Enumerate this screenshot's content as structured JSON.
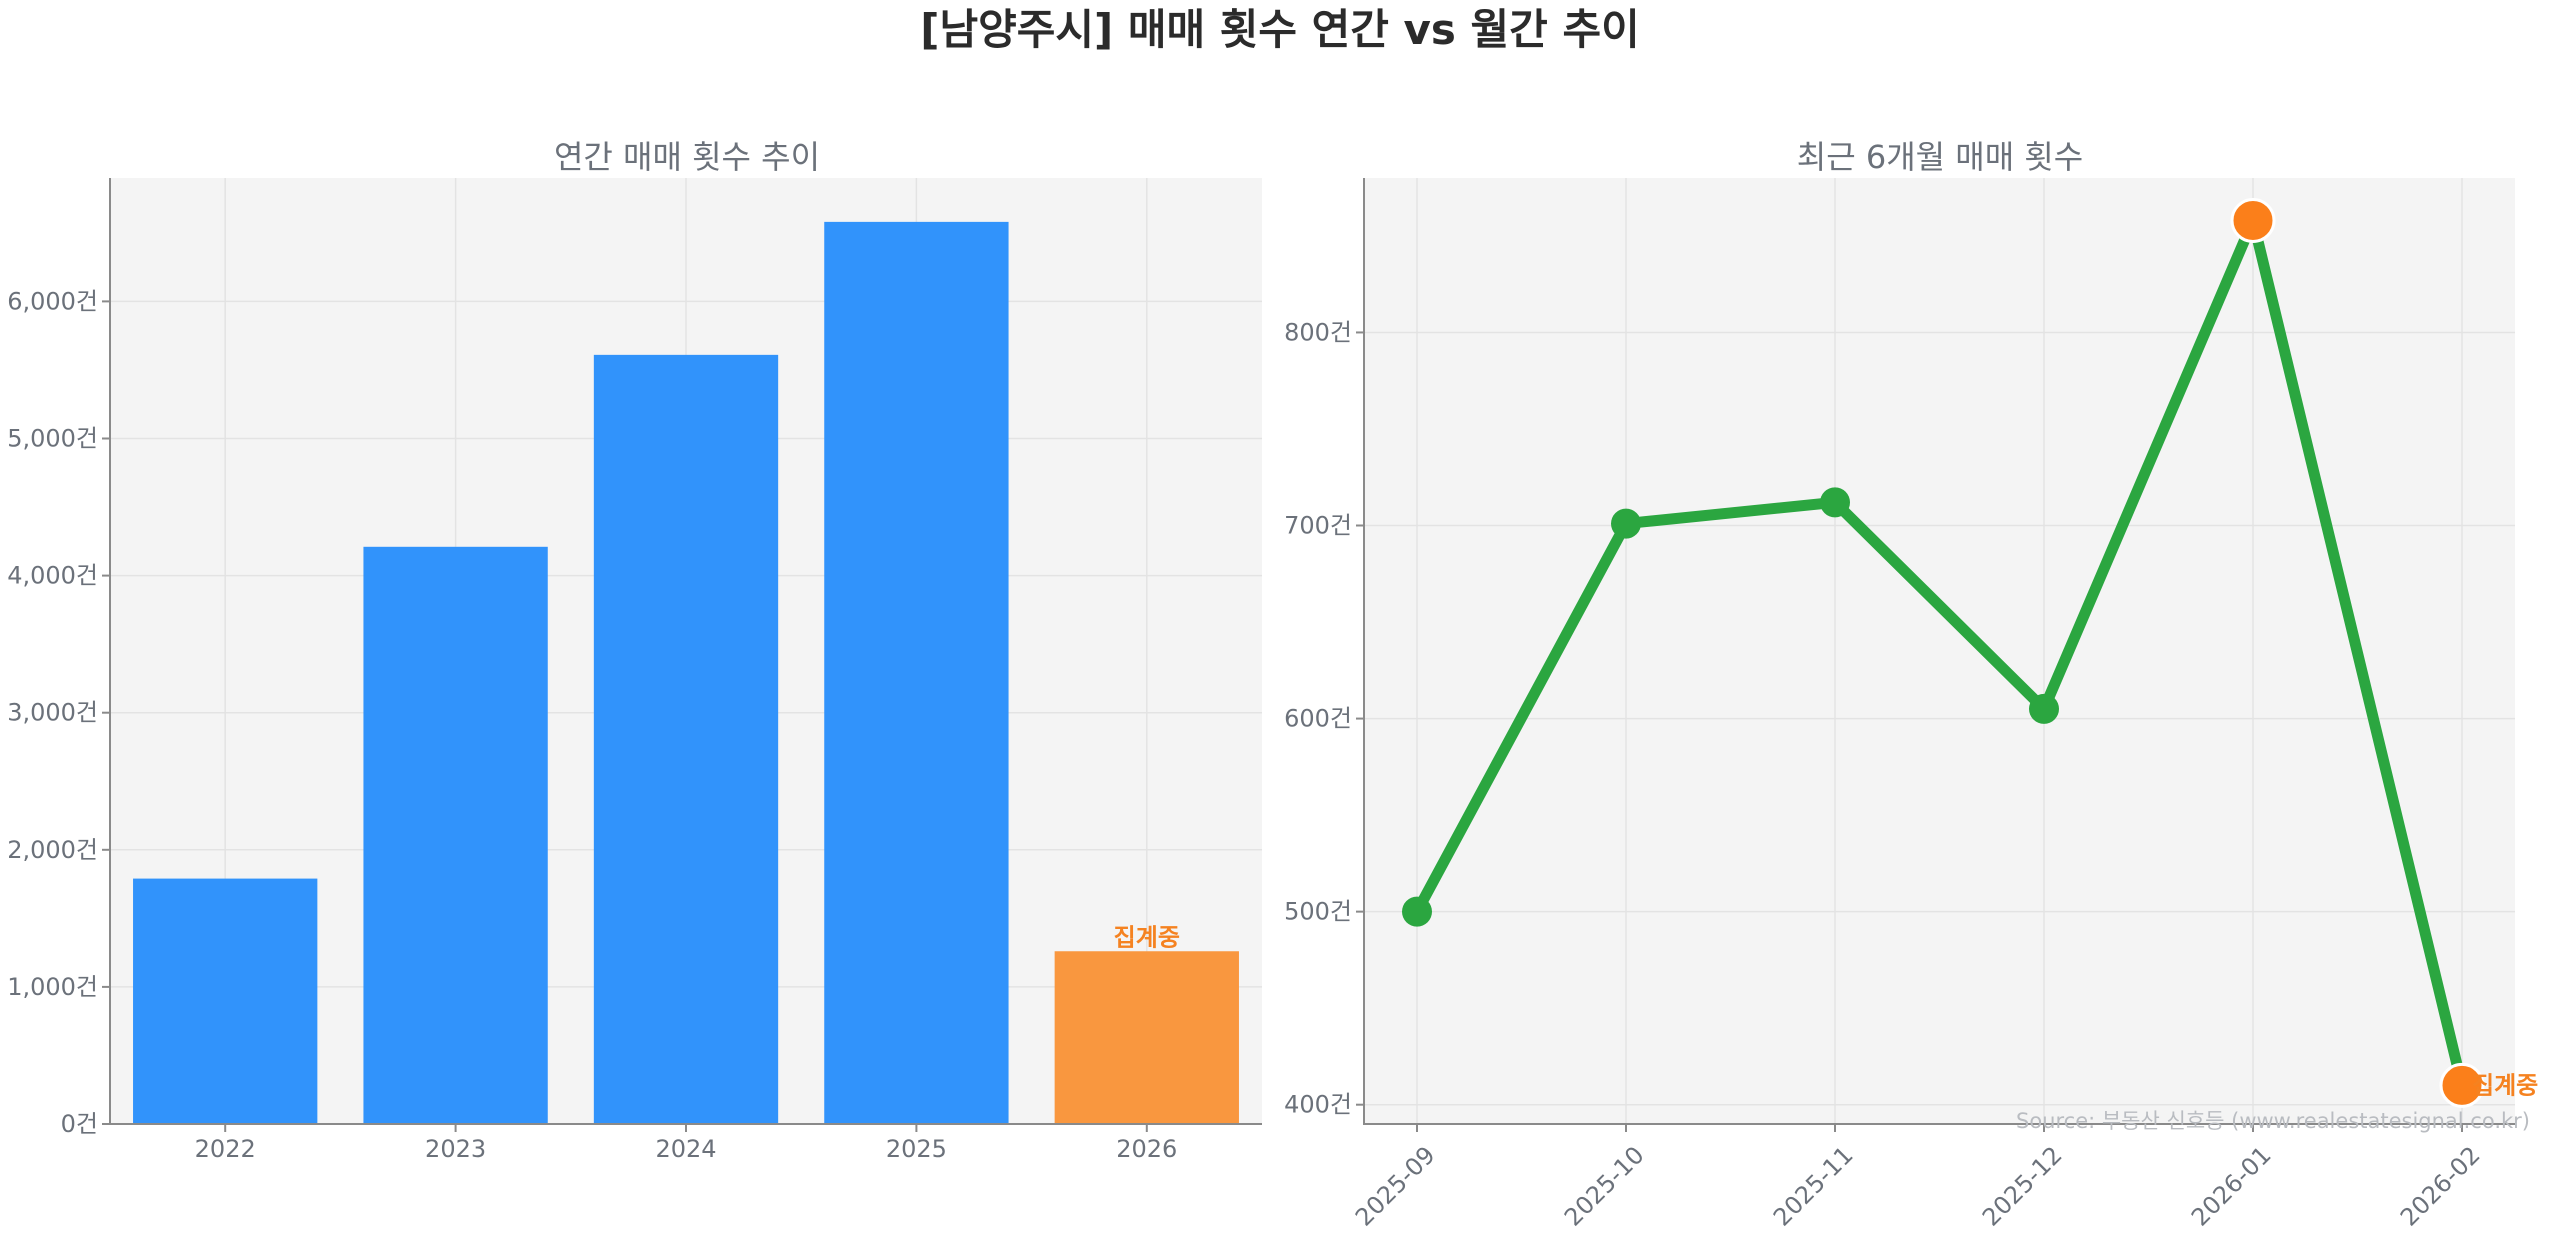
{
  "figure_title": "[남양주시] 매매 횟수 연간 vs 월간 추이",
  "source_note": "Source: 부동산 신호등 (www.realestatesignal.co.kr)",
  "colors": {
    "annual_bar": "#3193fb",
    "annual_bar_current": "#f9973f",
    "monthly_line": "#2ba640",
    "monthly_point_highlight": "#fb7f1a",
    "status_label": "#f58220",
    "plot_background": "#f4f4f4",
    "grid": "#e3e3e3",
    "axis_text": "#6b717a"
  },
  "chart_data": [
    {
      "type": "bar",
      "title": "연간 매매 횟수 추이",
      "xlabel": "",
      "ylabel": "",
      "categories": [
        "2022",
        "2023",
        "2024",
        "2025",
        "2026"
      ],
      "values": [
        1790,
        4210,
        5610,
        6580,
        1260
      ],
      "ylim": [
        0,
        6900
      ],
      "yticks": [
        0,
        1000,
        2000,
        3000,
        4000,
        5000,
        6000
      ],
      "ytick_labels": [
        "0건",
        "1,000건",
        "2,000건",
        "3,000건",
        "4,000건",
        "5,000건",
        "6,000건"
      ],
      "highlight_index": 4,
      "annotation": "집계중",
      "grid": true,
      "legend": "none"
    },
    {
      "type": "line",
      "title": "최근 6개월 매매 횟수",
      "xlabel": "",
      "ylabel": "",
      "x": [
        "2025-09",
        "2025-10",
        "2025-11",
        "2025-12",
        "2026-01",
        "2026-02"
      ],
      "values": [
        500,
        701,
        712,
        605,
        858,
        410
      ],
      "ylim": [
        390,
        880
      ],
      "yticks": [
        400,
        500,
        600,
        700,
        800
      ],
      "ytick_labels": [
        "400건",
        "500건",
        "600건",
        "700건",
        "800건"
      ],
      "highlight_indices": [
        4,
        5
      ],
      "annotation": "집계중",
      "annotation_index": 5,
      "grid": true,
      "legend": "none"
    }
  ]
}
